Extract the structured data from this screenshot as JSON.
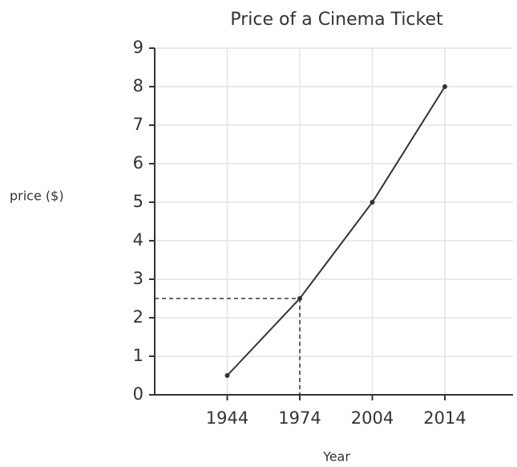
{
  "chart_data": {
    "type": "line",
    "title": "Price of a Cinema Ticket",
    "xlabel": "Year",
    "ylabel": "price ($)",
    "categories": [
      "1944",
      "1974",
      "2004",
      "2014"
    ],
    "values": [
      0.5,
      2.5,
      5,
      8
    ],
    "color": "#333333",
    "ylim": [
      0,
      9
    ],
    "yticks": [
      0,
      1,
      2,
      3,
      4,
      5,
      6,
      7,
      8,
      9
    ],
    "grid": true,
    "highlight_index": 1
  }
}
